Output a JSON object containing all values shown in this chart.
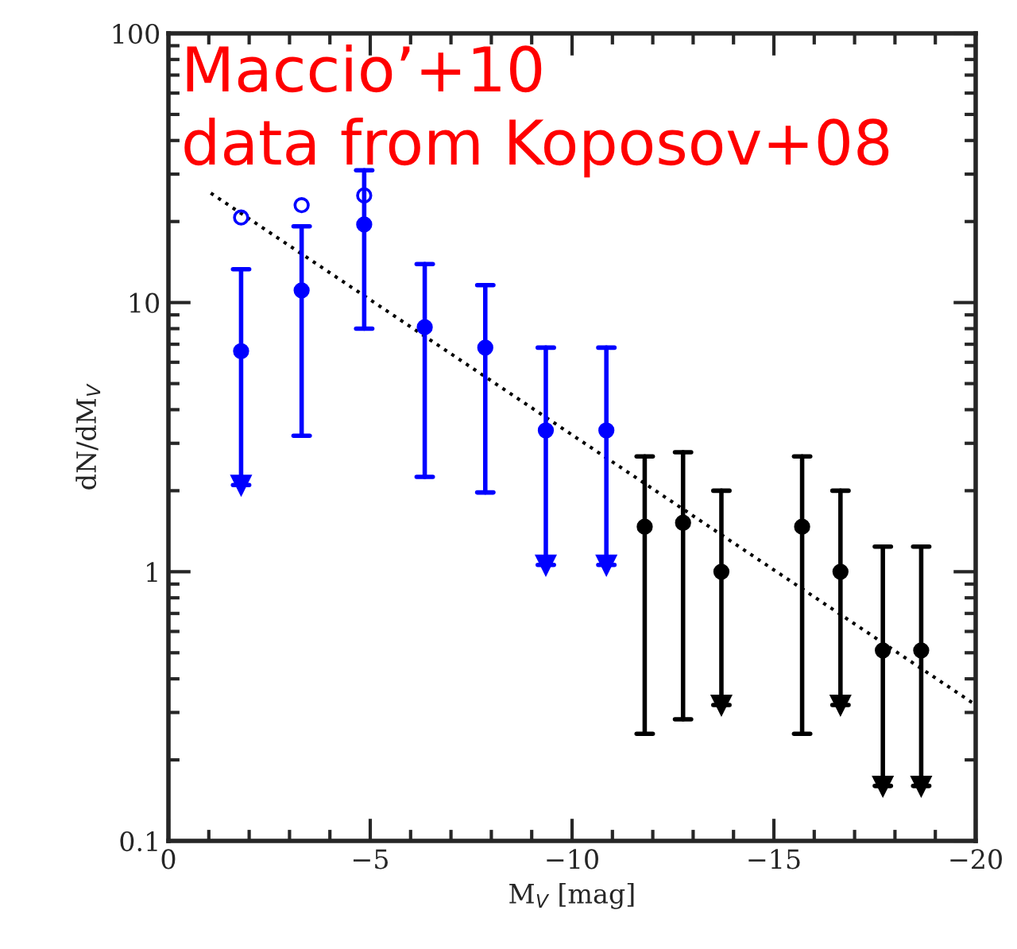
{
  "chart_data": {
    "type": "scatter",
    "xlabel": "M$_{V}$ [mag]",
    "ylabel": "dN/dM$_{V}$",
    "annotations": [
      "Maccio’+10",
      "data from Koposov+08"
    ],
    "xlim": [
      0,
      -20
    ],
    "xticks": [
      0,
      {
        "value": -5,
        "label": "−5"
      },
      {
        "value": -10,
        "label": "−10"
      },
      {
        "value": -15,
        "label": "−15"
      },
      {
        "value": -20,
        "label": "−20"
      }
    ],
    "ylim": [
      0.1,
      100
    ],
    "yticks": [
      0.1,
      1,
      10,
      100
    ],
    "log": true,
    "grid": false,
    "marker": "circle",
    "series": [
      {
        "color": "#0000ff",
        "x": [
          -1.8,
          -3.3,
          -4.85,
          -6.35,
          -7.85,
          -9.35,
          -10.85
        ],
        "values": [
          6.6,
          11.1,
          19.5,
          8.1,
          6.8,
          3.35,
          3.35
        ],
        "errors": [
          [
            2.1,
            13.3
          ],
          [
            3.2,
            19.2
          ],
          [
            8.0,
            31
          ],
          [
            2.25,
            13.9
          ],
          [
            1.97,
            11.6
          ],
          [
            1.06,
            6.8
          ],
          [
            1.06,
            6.8
          ]
        ]
      },
      {
        "color": "#0000ff",
        "marker": "triangle",
        "x": [
          -1.8,
          -9.35,
          -10.85
        ],
        "values": [
          2.1,
          1.06,
          1.06
        ]
      },
      {
        "color": "#0000ff",
        "x": [
          -1.8,
          -3.3,
          -4.85
        ],
        "values": [
          20.7,
          23,
          25
        ]
      },
      {
        "color": "#000000",
        "x": [
          -11.8,
          -12.75,
          -13.7,
          -15.7,
          -16.65,
          -17.7,
          -18.65
        ],
        "values": [
          1.47,
          1.52,
          1.0,
          1.47,
          1.0,
          0.51,
          0.51
        ],
        "errors": [
          [
            0.25,
            2.68
          ],
          [
            0.283,
            2.78
          ],
          [
            0.32,
            2.0
          ],
          [
            0.25,
            2.68
          ],
          [
            0.32,
            2.0
          ],
          [
            0.16,
            1.24
          ],
          [
            0.16,
            1.24
          ]
        ]
      },
      {
        "color": "#000000",
        "marker": "triangle",
        "x": [
          -13.7,
          -16.65,
          -17.7,
          -18.65
        ],
        "values": [
          0.32,
          0.32,
          0.16,
          0.16
        ]
      },
      {
        "type": "line",
        "color": "#000000",
        "line_style": "dotted",
        "marker": "none",
        "x": [
          -1.05,
          -20
        ],
        "values": [
          25.5,
          0.32
        ]
      }
    ]
  }
}
